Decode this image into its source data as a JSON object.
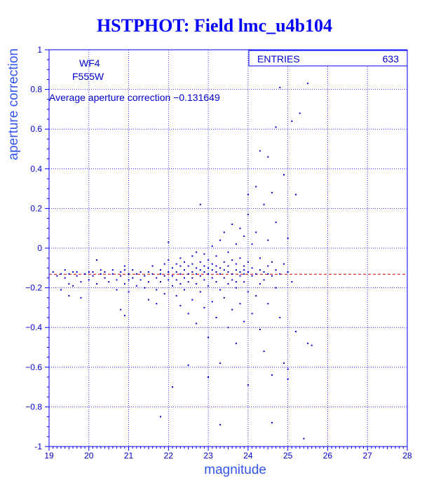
{
  "chart_data": {
    "type": "scatter",
    "title": "HSTPHOT: Field lmc_u4b104",
    "xlabel": "magnitude",
    "ylabel": "aperture correction",
    "xlim": [
      19,
      28
    ],
    "ylim": [
      -1,
      1
    ],
    "x_ticks": [
      "19",
      "20",
      "21",
      "22",
      "23",
      "24",
      "25",
      "26",
      "27",
      "28"
    ],
    "y_ticks": [
      "-1",
      "−0.8",
      "−0.6",
      "−0.4",
      "−0.2",
      "0",
      "0.2",
      "0.4",
      "0.6",
      "0.8",
      "1"
    ],
    "grid": true,
    "stats": {
      "label": "ENTRIES",
      "value": "633"
    },
    "annotations": {
      "chip": "WF4",
      "filter": "F555W",
      "average_text": "Average aperture correction −0.131649"
    },
    "average_line": -0.131649,
    "colors": {
      "axis": "#0000ff",
      "points": "#0000cc",
      "average_line": "#cc0000",
      "title": "#0000ff"
    },
    "points": [
      [
        19.1,
        -0.12
      ],
      [
        19.2,
        -0.14
      ],
      [
        19.3,
        -0.13
      ],
      [
        19.3,
        -0.21
      ],
      [
        19.4,
        -0.11
      ],
      [
        19.4,
        -0.15
      ],
      [
        19.5,
        -0.13
      ],
      [
        19.5,
        -0.18
      ],
      [
        19.6,
        -0.12
      ],
      [
        19.6,
        -0.19
      ],
      [
        19.5,
        -0.24
      ],
      [
        19.7,
        -0.14
      ],
      [
        19.7,
        -0.12
      ],
      [
        19.8,
        -0.17
      ],
      [
        19.8,
        -0.25
      ],
      [
        19.9,
        -0.13
      ],
      [
        20.0,
        -0.12
      ],
      [
        20.0,
        -0.16
      ],
      [
        20.1,
        -0.14
      ],
      [
        20.1,
        -0.12
      ],
      [
        20.2,
        -0.18
      ],
      [
        20.3,
        -0.13
      ],
      [
        20.3,
        -0.11
      ],
      [
        20.4,
        -0.15
      ],
      [
        20.4,
        -0.12
      ],
      [
        20.5,
        -0.17
      ],
      [
        20.6,
        -0.13
      ],
      [
        20.6,
        -0.11
      ],
      [
        20.7,
        -0.16
      ],
      [
        20.7,
        -0.21
      ],
      [
        20.8,
        -0.12
      ],
      [
        20.8,
        -0.14
      ],
      [
        20.9,
        -0.18
      ],
      [
        20.9,
        -0.11
      ],
      [
        20.9,
        -0.09
      ],
      [
        21.0,
        -0.13
      ],
      [
        21.0,
        -0.22
      ],
      [
        21.0,
        -0.16
      ],
      [
        20.8,
        -0.31
      ],
      [
        20.9,
        -0.34
      ],
      [
        21.1,
        -0.11
      ],
      [
        21.1,
        -0.15
      ],
      [
        21.2,
        -0.13
      ],
      [
        21.2,
        -0.19
      ],
      [
        21.3,
        -0.12
      ],
      [
        21.3,
        -0.16
      ],
      [
        21.4,
        -0.14
      ],
      [
        21.4,
        -0.2
      ],
      [
        21.5,
        -0.12
      ],
      [
        21.5,
        -0.17
      ],
      [
        21.6,
        -0.13
      ],
      [
        21.6,
        -0.09
      ],
      [
        21.7,
        -0.15
      ],
      [
        21.7,
        -0.21
      ],
      [
        21.7,
        -0.28
      ],
      [
        21.8,
        -0.13
      ],
      [
        21.8,
        -0.11
      ],
      [
        21.8,
        -0.17
      ],
      [
        21.9,
        -0.14
      ],
      [
        21.9,
        -0.08
      ],
      [
        21.9,
        -0.23
      ],
      [
        22.0,
        -0.12
      ],
      [
        22.0,
        -0.06
      ],
      [
        22.0,
        -0.16
      ],
      [
        22.0,
        0.03
      ],
      [
        22.1,
        -0.14
      ],
      [
        22.1,
        -0.1
      ],
      [
        22.1,
        -0.19
      ],
      [
        22.2,
        -0.12
      ],
      [
        22.2,
        -0.08
      ],
      [
        22.2,
        -0.16
      ],
      [
        22.2,
        -0.24
      ],
      [
        22.3,
        -0.13
      ],
      [
        22.3,
        -0.09
      ],
      [
        22.3,
        -0.05
      ],
      [
        22.3,
        -0.18
      ],
      [
        22.3,
        -0.29
      ],
      [
        22.4,
        -0.11
      ],
      [
        22.4,
        -0.15
      ],
      [
        22.4,
        -0.07
      ],
      [
        22.4,
        -0.21
      ],
      [
        22.5,
        -0.13
      ],
      [
        22.5,
        -0.09
      ],
      [
        22.5,
        -0.17
      ],
      [
        22.5,
        -0.33
      ],
      [
        22.6,
        -0.12
      ],
      [
        22.6,
        -0.08
      ],
      [
        22.6,
        -0.15
      ],
      [
        22.6,
        -0.04
      ],
      [
        22.6,
        -0.26
      ],
      [
        22.7,
        -0.13
      ],
      [
        22.7,
        -0.1
      ],
      [
        22.7,
        -0.18
      ],
      [
        22.7,
        -0.02
      ],
      [
        22.7,
        -0.38
      ],
      [
        22.8,
        -0.11
      ],
      [
        22.8,
        -0.14
      ],
      [
        22.8,
        -0.07
      ],
      [
        22.8,
        -0.22
      ],
      [
        22.8,
        0.22
      ],
      [
        22.9,
        -0.12
      ],
      [
        22.9,
        -0.09
      ],
      [
        22.9,
        -0.16
      ],
      [
        22.9,
        -0.03
      ],
      [
        22.9,
        -0.3
      ],
      [
        23.0,
        -0.13
      ],
      [
        23.0,
        -0.1
      ],
      [
        23.0,
        -0.06
      ],
      [
        23.0,
        -0.19
      ],
      [
        23.0,
        -0.45
      ],
      [
        23.1,
        -0.11
      ],
      [
        23.1,
        -0.15
      ],
      [
        23.1,
        -0.08
      ],
      [
        23.1,
        0.01
      ],
      [
        23.1,
        -0.27
      ],
      [
        23.2,
        -0.12
      ],
      [
        23.2,
        -0.09
      ],
      [
        23.2,
        -0.17
      ],
      [
        23.2,
        -0.04
      ],
      [
        23.2,
        -0.35
      ],
      [
        23.3,
        -0.13
      ],
      [
        23.3,
        -0.1
      ],
      [
        23.3,
        -0.21
      ],
      [
        23.3,
        0.04
      ],
      [
        23.3,
        -0.58
      ],
      [
        23.4,
        -0.11
      ],
      [
        23.4,
        -0.07
      ],
      [
        23.4,
        -0.15
      ],
      [
        23.4,
        -0.25
      ],
      [
        23.4,
        0.08
      ],
      [
        23.5,
        -0.12
      ],
      [
        23.5,
        -0.09
      ],
      [
        23.5,
        -0.18
      ],
      [
        23.5,
        -0.02
      ],
      [
        23.5,
        -0.4
      ],
      [
        23.6,
        -0.13
      ],
      [
        23.6,
        -0.06
      ],
      [
        23.6,
        -0.16
      ],
      [
        23.6,
        0.12
      ],
      [
        23.6,
        -0.31
      ],
      [
        23.7,
        -0.11
      ],
      [
        23.7,
        -0.08
      ],
      [
        23.7,
        -0.2
      ],
      [
        23.7,
        0.02
      ],
      [
        23.7,
        -0.48
      ],
      [
        23.8,
        -0.12
      ],
      [
        23.8,
        -0.14
      ],
      [
        23.8,
        -0.05
      ],
      [
        23.8,
        0.1
      ],
      [
        23.8,
        -0.28
      ],
      [
        23.9,
        -0.13
      ],
      [
        23.9,
        -0.09
      ],
      [
        23.9,
        -0.17
      ],
      [
        23.9,
        0.06
      ],
      [
        23.9,
        -0.37
      ],
      [
        24.0,
        -0.12
      ],
      [
        24.0,
        -0.07
      ],
      [
        24.0,
        0.17
      ],
      [
        24.0,
        0.27
      ],
      [
        24.0,
        -0.22
      ],
      [
        24.1,
        -0.1
      ],
      [
        24.1,
        -0.14
      ],
      [
        24.1,
        0.02
      ],
      [
        24.1,
        -0.33
      ],
      [
        24.2,
        -0.13
      ],
      [
        24.2,
        0.31
      ],
      [
        24.2,
        0.08
      ],
      [
        24.2,
        -0.24
      ],
      [
        24.3,
        -0.11
      ],
      [
        24.3,
        0.49
      ],
      [
        24.3,
        -0.05
      ],
      [
        24.3,
        -0.41
      ],
      [
        24.4,
        -0.12
      ],
      [
        24.4,
        0.22
      ],
      [
        24.4,
        -0.16
      ],
      [
        24.4,
        -0.52
      ],
      [
        24.5,
        -0.09
      ],
      [
        24.5,
        0.46
      ],
      [
        24.5,
        0.04
      ],
      [
        24.5,
        -0.28
      ],
      [
        24.6,
        -0.14
      ],
      [
        24.6,
        0.28
      ],
      [
        24.6,
        -0.07
      ],
      [
        24.6,
        -0.64
      ],
      [
        24.7,
        -0.11
      ],
      [
        24.7,
        0.61
      ],
      [
        24.7,
        -0.2
      ],
      [
        24.7,
        0.13
      ],
      [
        24.8,
        0.81
      ],
      [
        24.8,
        -0.13
      ],
      [
        24.8,
        -0.35
      ],
      [
        24.9,
        0.37
      ],
      [
        24.9,
        -0.08
      ],
      [
        24.9,
        -0.58
      ],
      [
        25.0,
        -0.12
      ],
      [
        25.0,
        0.05
      ],
      [
        25.0,
        -0.61
      ],
      [
        25.1,
        0.64
      ],
      [
        25.1,
        -0.17
      ],
      [
        25.2,
        0.27
      ],
      [
        25.2,
        -0.42
      ],
      [
        25.3,
        0.68
      ],
      [
        25.4,
        -0.96
      ],
      [
        25.5,
        0.83
      ],
      [
        25.5,
        -0.48
      ],
      [
        25.6,
        -0.49
      ],
      [
        22.1,
        -0.7
      ],
      [
        21.8,
        -0.85
      ],
      [
        23.3,
        -0.89
      ],
      [
        23.0,
        -0.65
      ],
      [
        24.0,
        -0.69
      ],
      [
        24.6,
        -0.88
      ],
      [
        25.0,
        -0.66
      ],
      [
        23.7,
        -0.17
      ],
      [
        23.9,
        -0.11
      ],
      [
        22.5,
        -0.59
      ],
      [
        24.3,
        -0.18
      ],
      [
        24.5,
        -0.13
      ],
      [
        20.2,
        -0.06
      ],
      [
        21.5,
        -0.26
      ]
    ]
  }
}
